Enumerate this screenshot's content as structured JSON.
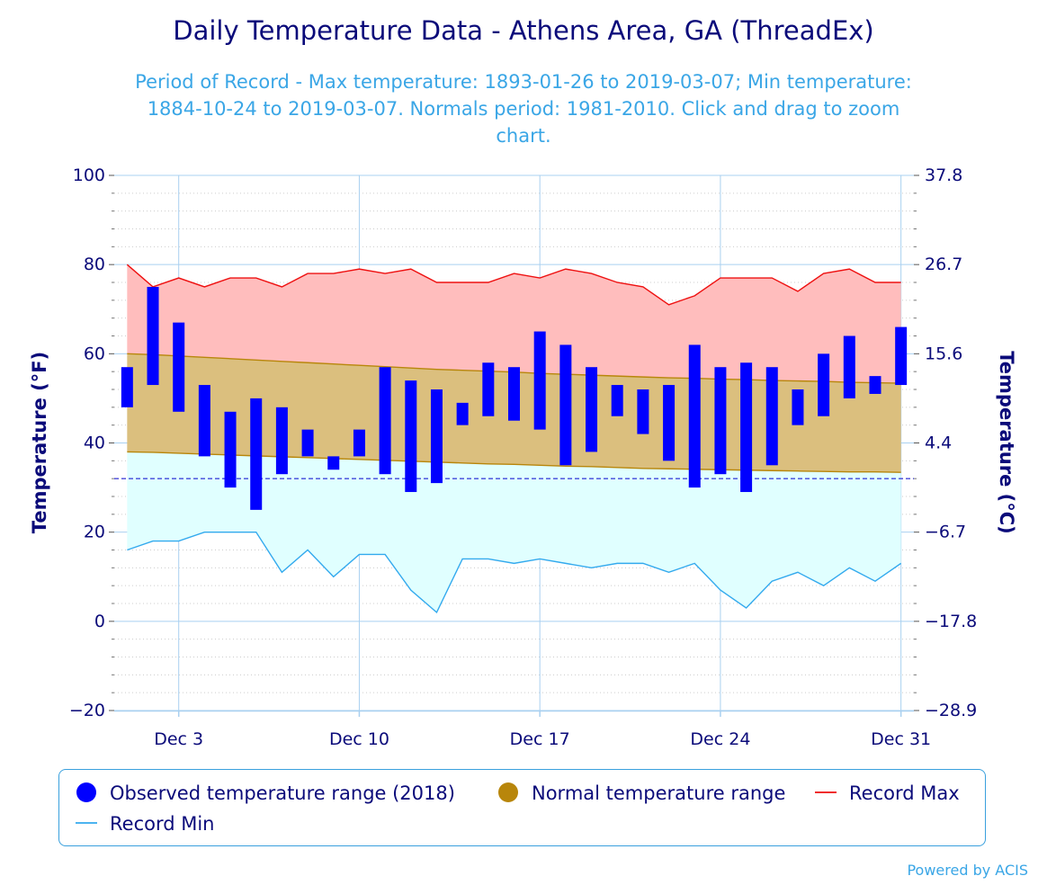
{
  "chart_data": {
    "type": "range-bar-with-lines",
    "title": "Daily Temperature Data - Athens Area, GA (ThreadEx)",
    "subtitle_lines": [
      "Period of Record - Max temperature: 1893-01-26 to 2019-03-07; Min temperature:",
      "1884-10-24 to 2019-03-07. Normals period: 1981-2010. Click and drag to zoom",
      "chart."
    ],
    "ylabel_left": "Temperature (°F)",
    "ylabel_right": "Temperature (°C)",
    "ylim": [
      -20,
      100
    ],
    "yticks_left": [
      "100",
      "80",
      "60",
      "40",
      "20",
      "0",
      "−20"
    ],
    "yticks_right": [
      "37.8",
      "26.7",
      "15.6",
      "4.4",
      "−6.7",
      "−17.8",
      "−28.9"
    ],
    "xlim_days": [
      1,
      31
    ],
    "xticks": [
      {
        "day": 3,
        "label": "Dec 3"
      },
      {
        "day": 10,
        "label": "Dec 10"
      },
      {
        "day": 17,
        "label": "Dec 17"
      },
      {
        "day": 24,
        "label": "Dec 24"
      },
      {
        "day": 31,
        "label": "Dec 31"
      }
    ],
    "freezing_line": 32,
    "days": [
      1,
      2,
      3,
      4,
      5,
      6,
      7,
      8,
      9,
      10,
      11,
      12,
      13,
      14,
      15,
      16,
      17,
      18,
      19,
      20,
      21,
      22,
      23,
      24,
      25,
      26,
      27,
      28,
      29,
      30,
      31
    ],
    "record_max": [
      80,
      75,
      77,
      75,
      77,
      77,
      75,
      78,
      78,
      79,
      78,
      79,
      76,
      76,
      76,
      78,
      77,
      79,
      78,
      76,
      75,
      71,
      73,
      77,
      77,
      77,
      74,
      78,
      79,
      76,
      76
    ],
    "record_min": [
      16,
      18,
      18,
      20,
      20,
      20,
      11,
      16,
      10,
      15,
      15,
      7,
      2,
      14,
      14,
      13,
      14,
      13,
      12,
      13,
      13,
      11,
      13,
      7,
      3,
      9,
      11,
      8,
      12,
      9,
      13
    ],
    "normal_max": [
      60,
      59.8,
      59.5,
      59.2,
      58.9,
      58.6,
      58.3,
      58,
      57.7,
      57.4,
      57.1,
      56.8,
      56.5,
      56.3,
      56.1,
      55.9,
      55.6,
      55.4,
      55.2,
      55,
      54.8,
      54.6,
      54.5,
      54.3,
      54.2,
      54,
      53.9,
      53.8,
      53.6,
      53.5,
      53.4
    ],
    "normal_min": [
      38,
      37.9,
      37.7,
      37.5,
      37.3,
      37.1,
      36.9,
      36.7,
      36.5,
      36.3,
      36.1,
      35.9,
      35.7,
      35.5,
      35.3,
      35.2,
      35,
      34.8,
      34.7,
      34.5,
      34.3,
      34.2,
      34.1,
      34,
      33.9,
      33.8,
      33.7,
      33.6,
      33.5,
      33.5,
      33.4
    ],
    "observed_max": [
      57,
      75,
      67,
      53,
      47,
      50,
      48,
      43,
      37,
      43,
      57,
      54,
      52,
      49,
      58,
      57,
      65,
      62,
      57,
      53,
      52,
      53,
      62,
      57,
      58,
      57,
      52,
      60,
      64,
      55,
      66
    ],
    "observed_min": [
      48,
      53,
      47,
      37,
      30,
      25,
      33,
      37,
      34,
      37,
      33,
      29,
      31,
      44,
      46,
      45,
      43,
      35,
      38,
      46,
      42,
      36,
      30,
      33,
      29,
      35,
      44,
      46,
      50,
      51,
      53
    ],
    "legend": [
      {
        "label": "Observed temperature range (2018)",
        "color": "#0000ff",
        "marker": "circle"
      },
      {
        "label": "Normal temperature range",
        "color": "#b8860b",
        "marker": "circle"
      },
      {
        "label": "Record Max",
        "color": "#ee1111",
        "marker": "line"
      },
      {
        "label": "Record Min",
        "color": "#33aaee",
        "marker": "line"
      }
    ],
    "colors": {
      "observed": "#0000ff",
      "normal_fill": "#dbbf7e",
      "normal_line": "#b8860b",
      "record_max_fill": "#ffbdbd",
      "record_max_line": "#ee1111",
      "record_min_fill": "#e0ffff",
      "record_min_line": "#33aaee",
      "text_dark": "#0b0b7a",
      "subtitle": "#3aa6e6",
      "grid": "#a9d0f0"
    }
  },
  "footer": {
    "credit": "Powered by ACIS"
  }
}
